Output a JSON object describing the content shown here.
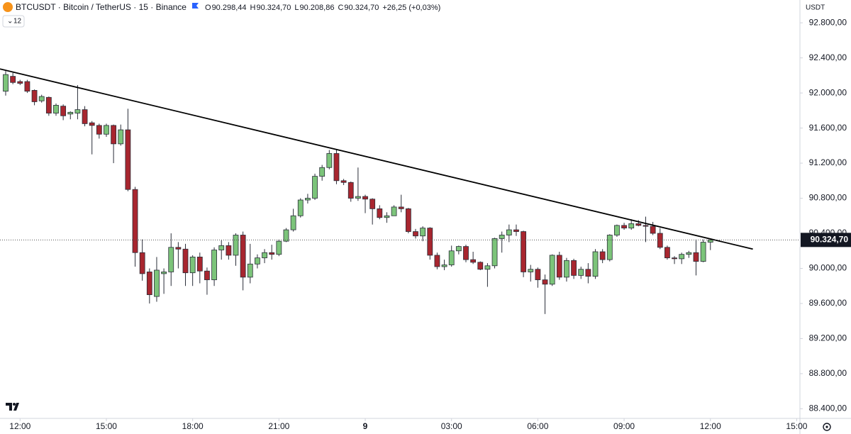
{
  "header": {
    "symbol": "BTCUSDT · Bitcoin / TetherUS · 15 · Binance",
    "ohlc": [
      {
        "key": "O",
        "value": "90.298,44"
      },
      {
        "key": "H",
        "value": "90.324,70"
      },
      {
        "key": "L",
        "value": "90.208,86"
      },
      {
        "key": "C",
        "value": "90.324,70"
      }
    ],
    "change": "+26,25 (+0,03%)",
    "indicator": "12",
    "currency": "USDT"
  },
  "chart_data": {
    "type": "candlestick",
    "open": [
      92020,
      92190,
      92130,
      92130,
      92030,
      91910,
      91950,
      91770,
      91850,
      91760,
      91770,
      91810,
      91660,
      91630,
      91530,
      91630,
      91420,
      91580,
      90900,
      90180,
      89960,
      89680,
      89940,
      89960,
      90240,
      90220,
      89950,
      90130,
      89970,
      89870,
      90210,
      90260,
      90150,
      90380,
      89900,
      90050,
      90120,
      90180,
      90160,
      90310,
      90440,
      90600,
      90780,
      90800,
      91050,
      91150,
      91310,
      91000,
      90980,
      90800,
      90820,
      90790,
      90680,
      90580,
      90600,
      90700,
      90680,
      90420,
      90370,
      90460,
      90150,
      90020,
      90040,
      90200,
      90250,
      90100,
      90070,
      89990,
      90030,
      90340,
      90380,
      90440,
      90420,
      89960,
      89990,
      89870,
      89820,
      90150,
      89900,
      90090,
      89920,
      89990,
      89910,
      90190,
      90100,
      90380,
      90490,
      90460,
      90510,
      90490,
      90480,
      90400,
      90240,
      90120,
      90110,
      90160,
      90180,
      90080,
      90298.44
    ],
    "high": [
      92250,
      92230,
      92150,
      92150,
      92040,
      91980,
      91960,
      91880,
      91870,
      91790,
      92090,
      91850,
      91680,
      91650,
      91650,
      91640,
      91640,
      91820,
      90930,
      90330,
      90000,
      90130,
      90000,
      90400,
      90300,
      90280,
      90150,
      90180,
      90010,
      90240,
      90320,
      90300,
      90400,
      90420,
      90280,
      90160,
      90220,
      90270,
      90330,
      90460,
      90680,
      90800,
      90850,
      91080,
      91180,
      91350,
      91360,
      91020,
      90990,
      91150,
      90840,
      90800,
      90720,
      90640,
      90720,
      90840,
      90690,
      90450,
      90480,
      90470,
      90180,
      90100,
      90260,
      90260,
      90270,
      90190,
      90080,
      90060,
      90350,
      90420,
      90500,
      90500,
      90430,
      90040,
      90010,
      89930,
      90160,
      90190,
      90120,
      90110,
      90020,
      90060,
      90220,
      90220,
      90390,
      90500,
      90520,
      90560,
      90550,
      90590,
      90530,
      90460,
      90260,
      90140,
      90180,
      90200,
      90330,
      90330,
      90324.7
    ],
    "low": [
      91970,
      92100,
      92090,
      92000,
      91860,
      91890,
      91740,
      91740,
      91690,
      91700,
      91700,
      91620,
      91300,
      91480,
      91500,
      91200,
      91400,
      90880,
      90020,
      89860,
      89600,
      89620,
      89710,
      89800,
      90000,
      89800,
      89800,
      89830,
      89700,
      89800,
      90100,
      90100,
      90030,
      89750,
      89830,
      90000,
      90060,
      90100,
      90140,
      90300,
      90420,
      90580,
      90740,
      90780,
      91000,
      91130,
      90960,
      90950,
      90760,
      90770,
      90630,
      90500,
      90560,
      90520,
      90600,
      90640,
      90400,
      90340,
      90310,
      90100,
      89990,
      89980,
      90020,
      90160,
      90070,
      90050,
      89980,
      89790,
      90000,
      90180,
      90300,
      90370,
      89900,
      89850,
      89780,
      89480,
      89800,
      89870,
      89850,
      89880,
      89880,
      89830,
      89880,
      90060,
      90080,
      90360,
      90440,
      90440,
      90480,
      90300,
      90380,
      90220,
      90100,
      90050,
      90050,
      90120,
      89920,
      90070,
      90208.86
    ],
    "close": [
      92210,
      92120,
      92110,
      92020,
      91900,
      91960,
      91770,
      91860,
      91740,
      91780,
      91810,
      91650,
      91630,
      91530,
      91630,
      91420,
      91580,
      90900,
      90180,
      89940,
      89700,
      89980,
      89960,
      90240,
      90220,
      89950,
      90130,
      89970,
      89870,
      90210,
      90260,
      90150,
      90380,
      89900,
      90050,
      90120,
      90180,
      90160,
      90310,
      90440,
      90600,
      90780,
      90800,
      91050,
      91150,
      91310,
      91000,
      90980,
      90800,
      90820,
      90790,
      90680,
      90580,
      90600,
      90700,
      90680,
      90420,
      90370,
      90460,
      90150,
      90020,
      90040,
      90200,
      90250,
      90100,
      90070,
      89990,
      90030,
      90340,
      90380,
      90440,
      90420,
      89960,
      89990,
      89870,
      89820,
      90150,
      89900,
      90090,
      89920,
      89990,
      89910,
      90190,
      90100,
      90380,
      90490,
      90460,
      90510,
      90490,
      90480,
      90400,
      90240,
      90120,
      90110,
      90160,
      90180,
      90080,
      90298.44,
      90324.7
    ],
    "up_color": "#7cc47a",
    "down_color": "#a8262f",
    "xlim": [
      -0.79,
      110.45
    ],
    "xticks": [
      {
        "value": 2,
        "label": "12:00"
      },
      {
        "value": 14,
        "label": "15:00"
      },
      {
        "value": 26,
        "label": "18:00"
      },
      {
        "value": 38,
        "label": "21:00"
      },
      {
        "value": 50,
        "label": "9"
      },
      {
        "value": 62,
        "label": "03:00"
      },
      {
        "value": 74,
        "label": "06:00"
      },
      {
        "value": 86,
        "label": "09:00"
      },
      {
        "value": 98,
        "label": "12:00"
      },
      {
        "value": 110,
        "label": "15:00"
      }
    ],
    "ylim": [
      88290,
      93060
    ],
    "yticks": [
      {
        "value": 88400,
        "label": "88.400,00"
      },
      {
        "value": 88800,
        "label": "88.800,00"
      },
      {
        "value": 89200,
        "label": "89.200,00"
      },
      {
        "value": 89600,
        "label": "89.600,00"
      },
      {
        "value": 90000,
        "label": "90.000,00"
      },
      {
        "value": 90400,
        "label": "90.400,00"
      },
      {
        "value": 90800,
        "label": "90.800,00"
      },
      {
        "value": 91200,
        "label": "91.200,00"
      },
      {
        "value": 91600,
        "label": "91.600,00"
      },
      {
        "value": 92000,
        "label": "92.000,00"
      },
      {
        "value": 92400,
        "label": "92.400,00"
      },
      {
        "value": 92800,
        "label": "92.800,00"
      }
    ],
    "last_price": {
      "value": 90324.7,
      "label": "90.324,70"
    },
    "trendline": {
      "x": [
        -0.79,
        103.9
      ],
      "y": [
        92274,
        90220
      ],
      "color": "#000000"
    }
  }
}
